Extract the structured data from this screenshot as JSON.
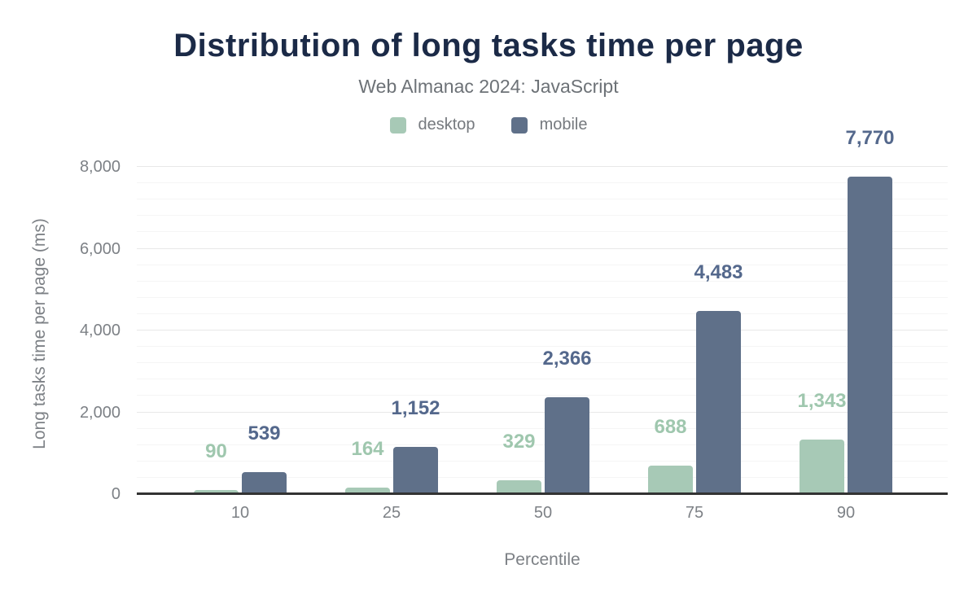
{
  "header": {
    "title": "Distribution of long tasks time per page",
    "subtitle": "Web Almanac 2024: JavaScript"
  },
  "colors": {
    "title": "#1b2a47",
    "subtitle": "#6d7277",
    "axis_text": "#7d8186",
    "baseline": "#333333",
    "gridline_major": "#e8e8e8",
    "gridline_minor": "#f5f5f5",
    "desktop": "#a7c9b6",
    "desktop_label": "#9fc7ae",
    "mobile": "#5f7089",
    "mobile_label": "#54688c"
  },
  "chart_data": {
    "type": "bar",
    "title": "Distribution of long tasks time per page",
    "subtitle": "Web Almanac 2024: JavaScript",
    "categories": [
      "10",
      "25",
      "50",
      "75",
      "90"
    ],
    "series": [
      {
        "name": "desktop",
        "color": "#a7c9b6",
        "label_color": "#9fc7ae",
        "values": [
          90,
          164,
          329,
          688,
          1343
        ],
        "data_labels": [
          "90",
          "164",
          "329",
          "688",
          "1,343"
        ]
      },
      {
        "name": "mobile",
        "color": "#5f7089",
        "label_color": "#54688c",
        "values": [
          539,
          1152,
          2366,
          4483,
          7770
        ],
        "data_labels": [
          "539",
          "1,152",
          "2,366",
          "4,483",
          "7,770"
        ]
      }
    ],
    "xlabel": "Percentile",
    "ylabel": "Long tasks time per page (ms)",
    "ylim": [
      0,
      8000
    ],
    "ytick_step": 2000,
    "yminor_step": 400,
    "ytick_labels": [
      "0",
      "2,000",
      "4,000",
      "6,000",
      "8,000"
    ],
    "grid": "horizontal",
    "legend_position": "top",
    "data_labels_shown": true
  }
}
